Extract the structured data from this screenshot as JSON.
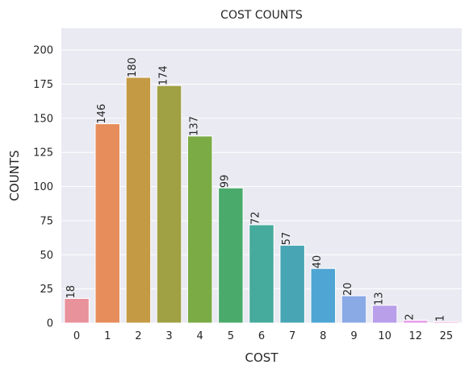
{
  "chart_data": {
    "type": "bar",
    "title": "COST COUNTS",
    "xlabel": "COST",
    "ylabel": "COUNTS",
    "categories": [
      "0",
      "1",
      "2",
      "3",
      "4",
      "5",
      "6",
      "7",
      "8",
      "9",
      "10",
      "12",
      "25"
    ],
    "values": [
      18,
      146,
      180,
      174,
      137,
      99,
      72,
      57,
      40,
      20,
      13,
      2,
      1
    ],
    "data_labels": [
      "18",
      "146",
      "180",
      "174",
      "137",
      "99",
      "72",
      "57",
      "40",
      "20",
      "13",
      "2",
      "1"
    ],
    "ylim": [
      0,
      216
    ],
    "yticks": [
      0,
      25,
      50,
      75,
      100,
      125,
      150,
      175,
      200
    ],
    "grid": true,
    "background": "#eaeaf2",
    "colors": [
      "#e8929b",
      "#e68d5b",
      "#c49a45",
      "#a0a044",
      "#7aab45",
      "#4aaa6c",
      "#46ab9c",
      "#48a6b4",
      "#4fa5d3",
      "#8aaae6",
      "#b99eea",
      "#e79be9",
      "#f09bc8"
    ]
  }
}
